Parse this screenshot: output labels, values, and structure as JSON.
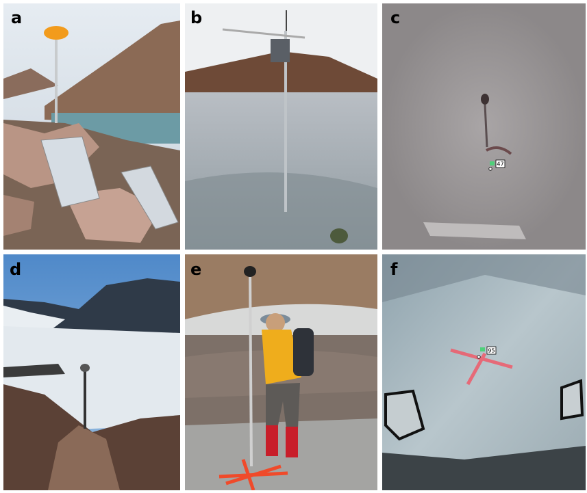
{
  "panels": [
    {
      "label": "a"
    },
    {
      "label": "b"
    },
    {
      "label": "c",
      "annotation": "47"
    },
    {
      "label": "d"
    },
    {
      "label": "e"
    },
    {
      "label": "f",
      "annotation": "95"
    }
  ]
}
